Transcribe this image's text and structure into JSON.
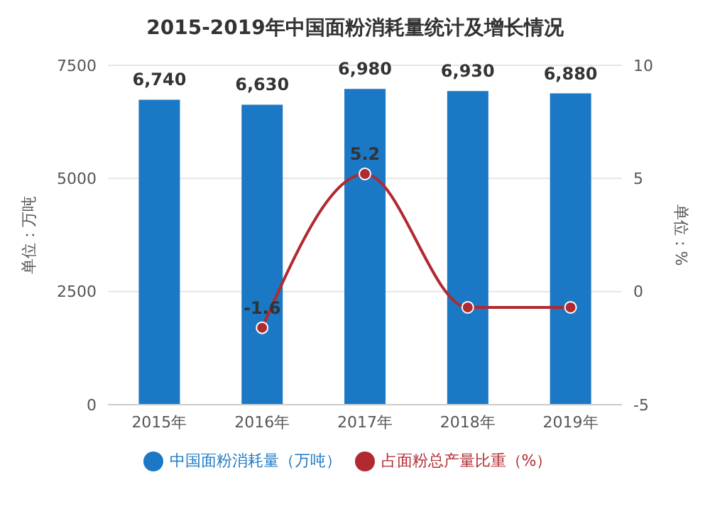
{
  "chart_data": {
    "type": "bar",
    "title": "2015-2019年中国面粉消耗量统计及增长情况",
    "categories": [
      "2015年",
      "2016年",
      "2017年",
      "2018年",
      "2019年"
    ],
    "series": [
      {
        "name": "中国面粉消耗量（万吨）",
        "color": "#1b78c4",
        "values": [
          6740,
          6630,
          6980,
          6930,
          6880
        ],
        "value_labels": [
          "6,740",
          "6,630",
          "6,980",
          "6,930",
          "6,880"
        ]
      },
      {
        "name": "占面粉总产量比重（%）",
        "type": "line",
        "axis": "y2",
        "color": "#b02a30",
        "values": [
          null,
          -1.6,
          5.2,
          -0.7,
          -0.7
        ],
        "value_labels": [
          null,
          "-1.6",
          "5.2",
          null,
          null
        ]
      }
    ],
    "ylabel": "单位：万吨",
    "y2label": "单位：%",
    "ylim": [
      0,
      7500
    ],
    "yticks": [
      0,
      2500,
      5000,
      7500
    ],
    "y2lim": [
      -5,
      10
    ],
    "y2ticks": [
      -5,
      0,
      5,
      10
    ],
    "grid": "y",
    "legend": "bottom",
    "marker": "circle"
  }
}
